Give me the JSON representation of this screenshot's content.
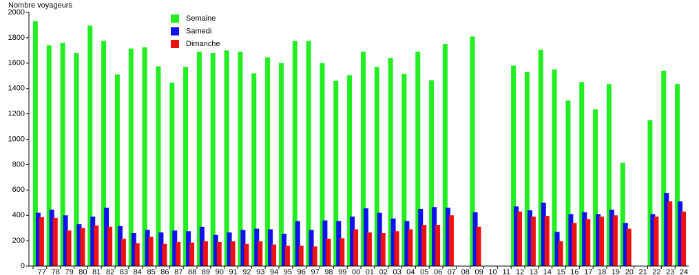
{
  "chart_data": {
    "type": "bar",
    "title": "Nombre voyageurs",
    "categories": [
      "77",
      "78",
      "79",
      "80",
      "81",
      "82",
      "83",
      "84",
      "85",
      "86",
      "87",
      "88",
      "89",
      "90",
      "91",
      "92",
      "93",
      "94",
      "95",
      "96",
      "97",
      "98",
      "99",
      "00",
      "01",
      "02",
      "03",
      "04",
      "05",
      "06",
      "07",
      "08",
      "09",
      "10",
      "11",
      "12",
      "13",
      "14",
      "15",
      "16",
      "17",
      "18",
      "19",
      "20",
      "21",
      "22",
      "23",
      "24"
    ],
    "series": [
      {
        "name": "Semaine",
        "color": "#22ee22",
        "values": [
          1930,
          1740,
          1760,
          1680,
          1895,
          1775,
          1510,
          1715,
          1725,
          1575,
          1445,
          1570,
          1690,
          1680,
          1700,
          1690,
          1520,
          1645,
          1600,
          1775,
          1775,
          1600,
          1460,
          1505,
          1690,
          1570,
          1640,
          1515,
          1690,
          1465,
          1750,
          null,
          1810,
          null,
          null,
          1580,
          1530,
          1705,
          1550,
          1305,
          1450,
          1235,
          1435,
          815,
          null,
          1150,
          1540,
          1435
        ]
      },
      {
        "name": "Samedi",
        "color": "#1111ee",
        "values": [
          420,
          445,
          400,
          330,
          390,
          460,
          315,
          260,
          285,
          265,
          280,
          275,
          310,
          245,
          265,
          285,
          295,
          290,
          255,
          355,
          285,
          360,
          355,
          390,
          455,
          420,
          375,
          355,
          450,
          465,
          460,
          null,
          425,
          null,
          null,
          470,
          440,
          500,
          270,
          410,
          425,
          410,
          445,
          340,
          null,
          410,
          575,
          510
        ]
      },
      {
        "name": "Dimanche",
        "color": "#ee1111",
        "values": [
          385,
          380,
          280,
          300,
          320,
          310,
          215,
          180,
          230,
          175,
          190,
          185,
          195,
          190,
          195,
          175,
          195,
          170,
          160,
          160,
          155,
          215,
          220,
          290,
          265,
          260,
          275,
          290,
          325,
          325,
          400,
          null,
          310,
          null,
          null,
          430,
          390,
          395,
          195,
          340,
          370,
          390,
          400,
          295,
          null,
          390,
          510,
          430
        ]
      }
    ],
    "ylim": [
      0,
      2000
    ],
    "yticks": [
      0,
      200,
      400,
      600,
      800,
      1000,
      1200,
      1400,
      1600,
      1800,
      2000
    ]
  }
}
